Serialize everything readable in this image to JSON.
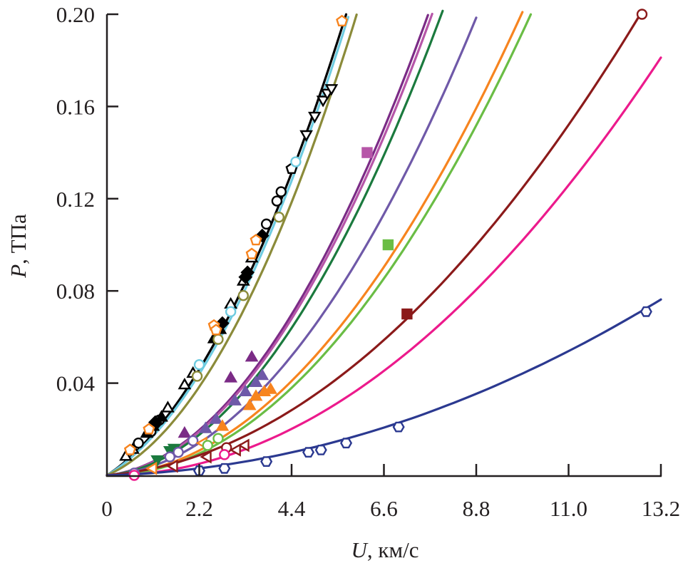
{
  "chart_data": {
    "type": "line",
    "title": "",
    "xlabel": "U, км/с",
    "xlabel_var": "U",
    "xlabel_unit": ", км/с",
    "ylabel": "P, ТПа",
    "ylabel_var": "P",
    "ylabel_unit": ", ТПа",
    "xlim": [
      0,
      13.2
    ],
    "ylim": [
      0,
      0.2
    ],
    "x_ticks": [
      0,
      2.2,
      4.4,
      6.6,
      8.8,
      11.0,
      13.2
    ],
    "x_tick_labels": [
      "0",
      "2.2",
      "4.4",
      "6.6",
      "8.8",
      "11.0",
      "13.2"
    ],
    "y_ticks": [
      0.04,
      0.08,
      0.12,
      0.16,
      0.2
    ],
    "y_tick_labels": [
      "0.04",
      "0.08",
      "0.12",
      "0.16",
      "0.20"
    ],
    "grid": false,
    "legend": "none",
    "series": [
      {
        "name": "black",
        "color": "#000000",
        "curve": {
          "a": 0.012,
          "b": 0.00405,
          "u_max": 5.7
        },
        "markers": [
          {
            "shape": "triangle-up",
            "fill": "open",
            "color": "#000000",
            "points": [
              [
                0.45,
                0.008
              ],
              [
                0.62,
                0.011
              ],
              [
                1.45,
                0.029
              ],
              [
                1.85,
                0.039
              ],
              [
                2.05,
                0.044
              ],
              [
                2.95,
                0.074
              ],
              [
                3.25,
                0.084
              ],
              [
                3.45,
                0.094
              ]
            ]
          },
          {
            "shape": "circle",
            "fill": "open",
            "color": "#000000",
            "points": [
              [
                0.75,
                0.014
              ],
              [
                1.05,
                0.019
              ],
              [
                1.25,
                0.024
              ],
              [
                3.8,
                0.109
              ],
              [
                4.05,
                0.119
              ],
              [
                4.15,
                0.123
              ]
            ]
          },
          {
            "shape": "triangle-up",
            "fill": "solid",
            "color": "#000000",
            "points": [
              [
                0.95,
                0.018
              ],
              [
                1.1,
                0.021
              ],
              [
                1.3,
                0.025
              ],
              [
                2.55,
                0.059
              ],
              [
                2.7,
                0.063
              ]
            ]
          },
          {
            "shape": "diamond",
            "fill": "solid",
            "color": "#000000",
            "points": [
              [
                1.15,
                0.023
              ],
              [
                2.75,
                0.066
              ],
              [
                3.3,
                0.086
              ],
              [
                3.35,
                0.088
              ],
              [
                3.7,
                0.104
              ]
            ]
          },
          {
            "shape": "pentagon",
            "fill": "open",
            "color": "#000000",
            "points": [
              [
                4.4,
                0.133
              ]
            ]
          },
          {
            "shape": "triangle-down",
            "fill": "open",
            "color": "#000000",
            "points": [
              [
                4.75,
                0.148
              ],
              [
                4.95,
                0.156
              ],
              [
                5.15,
                0.163
              ],
              [
                5.25,
                0.166
              ],
              [
                5.35,
                0.168
              ]
            ]
          }
        ]
      },
      {
        "name": "cyan",
        "color": "#6ecbe0",
        "curve": {
          "a": 0.011,
          "b": 0.0041,
          "u_max": 5.75
        },
        "markers": [
          {
            "shape": "circle",
            "fill": "open",
            "color": "#6ecbe0",
            "points": [
              [
                2.2,
                0.048
              ],
              [
                2.95,
                0.071
              ],
              [
                4.5,
                0.136
              ]
            ]
          }
        ]
      },
      {
        "name": "olive",
        "color": "#8b8b3a",
        "curve": {
          "a": 0.008,
          "b": 0.0043,
          "u_max": 5.95
        },
        "markers": [
          {
            "shape": "circle",
            "fill": "open",
            "color": "#8b8b3a",
            "points": [
              [
                2.15,
                0.043
              ],
              [
                2.65,
                0.059
              ],
              [
                3.25,
                0.078
              ],
              [
                4.1,
                0.112
              ]
            ]
          }
        ]
      },
      {
        "name": "orange-pentagons",
        "color": "#f7841f",
        "curve": null,
        "markers": [
          {
            "shape": "pentagon",
            "fill": "open",
            "color": "#f7841f",
            "points": [
              [
                0.55,
                0.011
              ],
              [
                1.0,
                0.02
              ],
              [
                2.55,
                0.065
              ],
              [
                2.6,
                0.063
              ],
              [
                3.45,
                0.096
              ],
              [
                3.55,
                0.102
              ],
              [
                5.6,
                0.197
              ]
            ]
          }
        ]
      },
      {
        "name": "purple",
        "color": "#7b2b86",
        "curve": {
          "a": 0.002,
          "b": 0.00315,
          "u_max": 7.65
        },
        "markers": [
          {
            "shape": "triangle-up",
            "fill": "solid",
            "color": "#7b2b86",
            "points": [
              [
                1.85,
                0.018
              ],
              [
                2.95,
                0.042
              ],
              [
                3.45,
                0.051
              ]
            ]
          }
        ]
      },
      {
        "name": "pink-purple",
        "color": "#b656a8",
        "curve": {
          "a": 0.0018,
          "b": 0.0031,
          "u_max": 7.75
        },
        "markers": [
          {
            "shape": "square",
            "fill": "solid",
            "color": "#b656a8",
            "points": [
              [
                6.2,
                0.14
              ]
            ]
          }
        ]
      },
      {
        "name": "dark-green",
        "color": "#1b7a3e",
        "curve": {
          "a": 0.0015,
          "b": 0.00296,
          "u_max": 8.0
        },
        "markers": [
          {
            "shape": "triangle-down",
            "fill": "solid",
            "color": "#1b7a3e",
            "points": [
              [
                1.2,
                0.007
              ],
              [
                1.5,
                0.011
              ],
              [
                1.6,
                0.012
              ]
            ]
          }
        ]
      },
      {
        "name": "violet",
        "color": "#6f59a8",
        "curve": {
          "a": 0.001,
          "b": 0.00245,
          "u_max": 8.8
        },
        "markers": [
          {
            "shape": "circle",
            "fill": "open",
            "color": "#6f59a8",
            "points": [
              [
                0.65,
                0.001
              ],
              [
                1.5,
                0.008
              ],
              [
                1.7,
                0.01
              ],
              [
                2.05,
                0.015
              ]
            ]
          },
          {
            "shape": "triangle-up",
            "fill": "solid",
            "color": "#6f59a8",
            "points": [
              [
                2.35,
                0.02
              ],
              [
                2.6,
                0.024
              ],
              [
                3.05,
                0.032
              ],
              [
                3.3,
                0.036
              ],
              [
                3.55,
                0.04
              ],
              [
                3.7,
                0.043
              ]
            ]
          }
        ]
      },
      {
        "name": "orange",
        "color": "#f7841f",
        "curve": {
          "a": 0.0005,
          "b": 0.002,
          "u_max": 9.9
        },
        "markers": [
          {
            "shape": "triangle-left",
            "fill": "open",
            "color": "#f7841f",
            "points": [
              [
                1.1,
                0.003
              ],
              [
                2.3,
                0.014
              ]
            ]
          },
          {
            "shape": "triangle-up",
            "fill": "solid",
            "color": "#f7841f",
            "points": [
              [
                2.75,
                0.021
              ],
              [
                3.4,
                0.03
              ],
              [
                3.55,
                0.034
              ],
              [
                3.75,
                0.036
              ],
              [
                3.9,
                0.037
              ]
            ]
          }
        ]
      },
      {
        "name": "light-green",
        "color": "#6abd45",
        "curve": {
          "a": 0.0,
          "b": 0.00196,
          "u_max": 10.1
        },
        "markers": [
          {
            "shape": "circle",
            "fill": "open",
            "color": "#6abd45",
            "points": [
              [
                2.4,
                0.013
              ],
              [
                2.65,
                0.016
              ]
            ]
          },
          {
            "shape": "square",
            "fill": "solid",
            "color": "#6abd45",
            "points": [
              [
                6.7,
                0.1
              ]
            ]
          }
        ]
      },
      {
        "name": "maroon",
        "color": "#8b1a1a",
        "curve": {
          "a": 0.0015,
          "b": 0.00112,
          "u_max": 12.75
        },
        "markers": [
          {
            "shape": "triangle-left",
            "fill": "open",
            "color": "#8b1a1a",
            "points": [
              [
                1.6,
                0.004
              ],
              [
                2.4,
                0.008
              ],
              [
                3.1,
                0.011
              ],
              [
                3.3,
                0.013
              ]
            ]
          },
          {
            "shape": "circle",
            "fill": "open",
            "color": "#8b1a1a",
            "points": [
              [
                2.85,
                0.012
              ],
              [
                12.75,
                0.2
              ]
            ]
          },
          {
            "shape": "square",
            "fill": "solid",
            "color": "#8b1a1a",
            "points": [
              [
                7.15,
                0.07
              ]
            ]
          }
        ]
      },
      {
        "name": "magenta",
        "color": "#ec1a8c",
        "curve": {
          "a": 0.0,
          "b": 0.00104,
          "u_max": 13.2
        },
        "markers": [
          {
            "shape": "circle",
            "fill": "open",
            "color": "#ec1a8c",
            "points": [
              [
                0.65,
                0.0
              ],
              [
                2.8,
                0.009
              ]
            ]
          }
        ]
      },
      {
        "name": "navy",
        "color": "#2b3990",
        "curve": {
          "a": 0.0005,
          "b": 0.0004,
          "u_max": 13.2
        },
        "markers": [
          {
            "shape": "hexagon",
            "fill": "open",
            "color": "#2b3990",
            "points": [
              [
                2.2,
                0.002
              ],
              [
                2.8,
                0.003
              ],
              [
                3.8,
                0.006
              ],
              [
                4.8,
                0.01
              ],
              [
                5.1,
                0.011
              ],
              [
                5.7,
                0.014
              ],
              [
                6.95,
                0.021
              ],
              [
                12.85,
                0.071
              ]
            ]
          }
        ]
      }
    ]
  }
}
